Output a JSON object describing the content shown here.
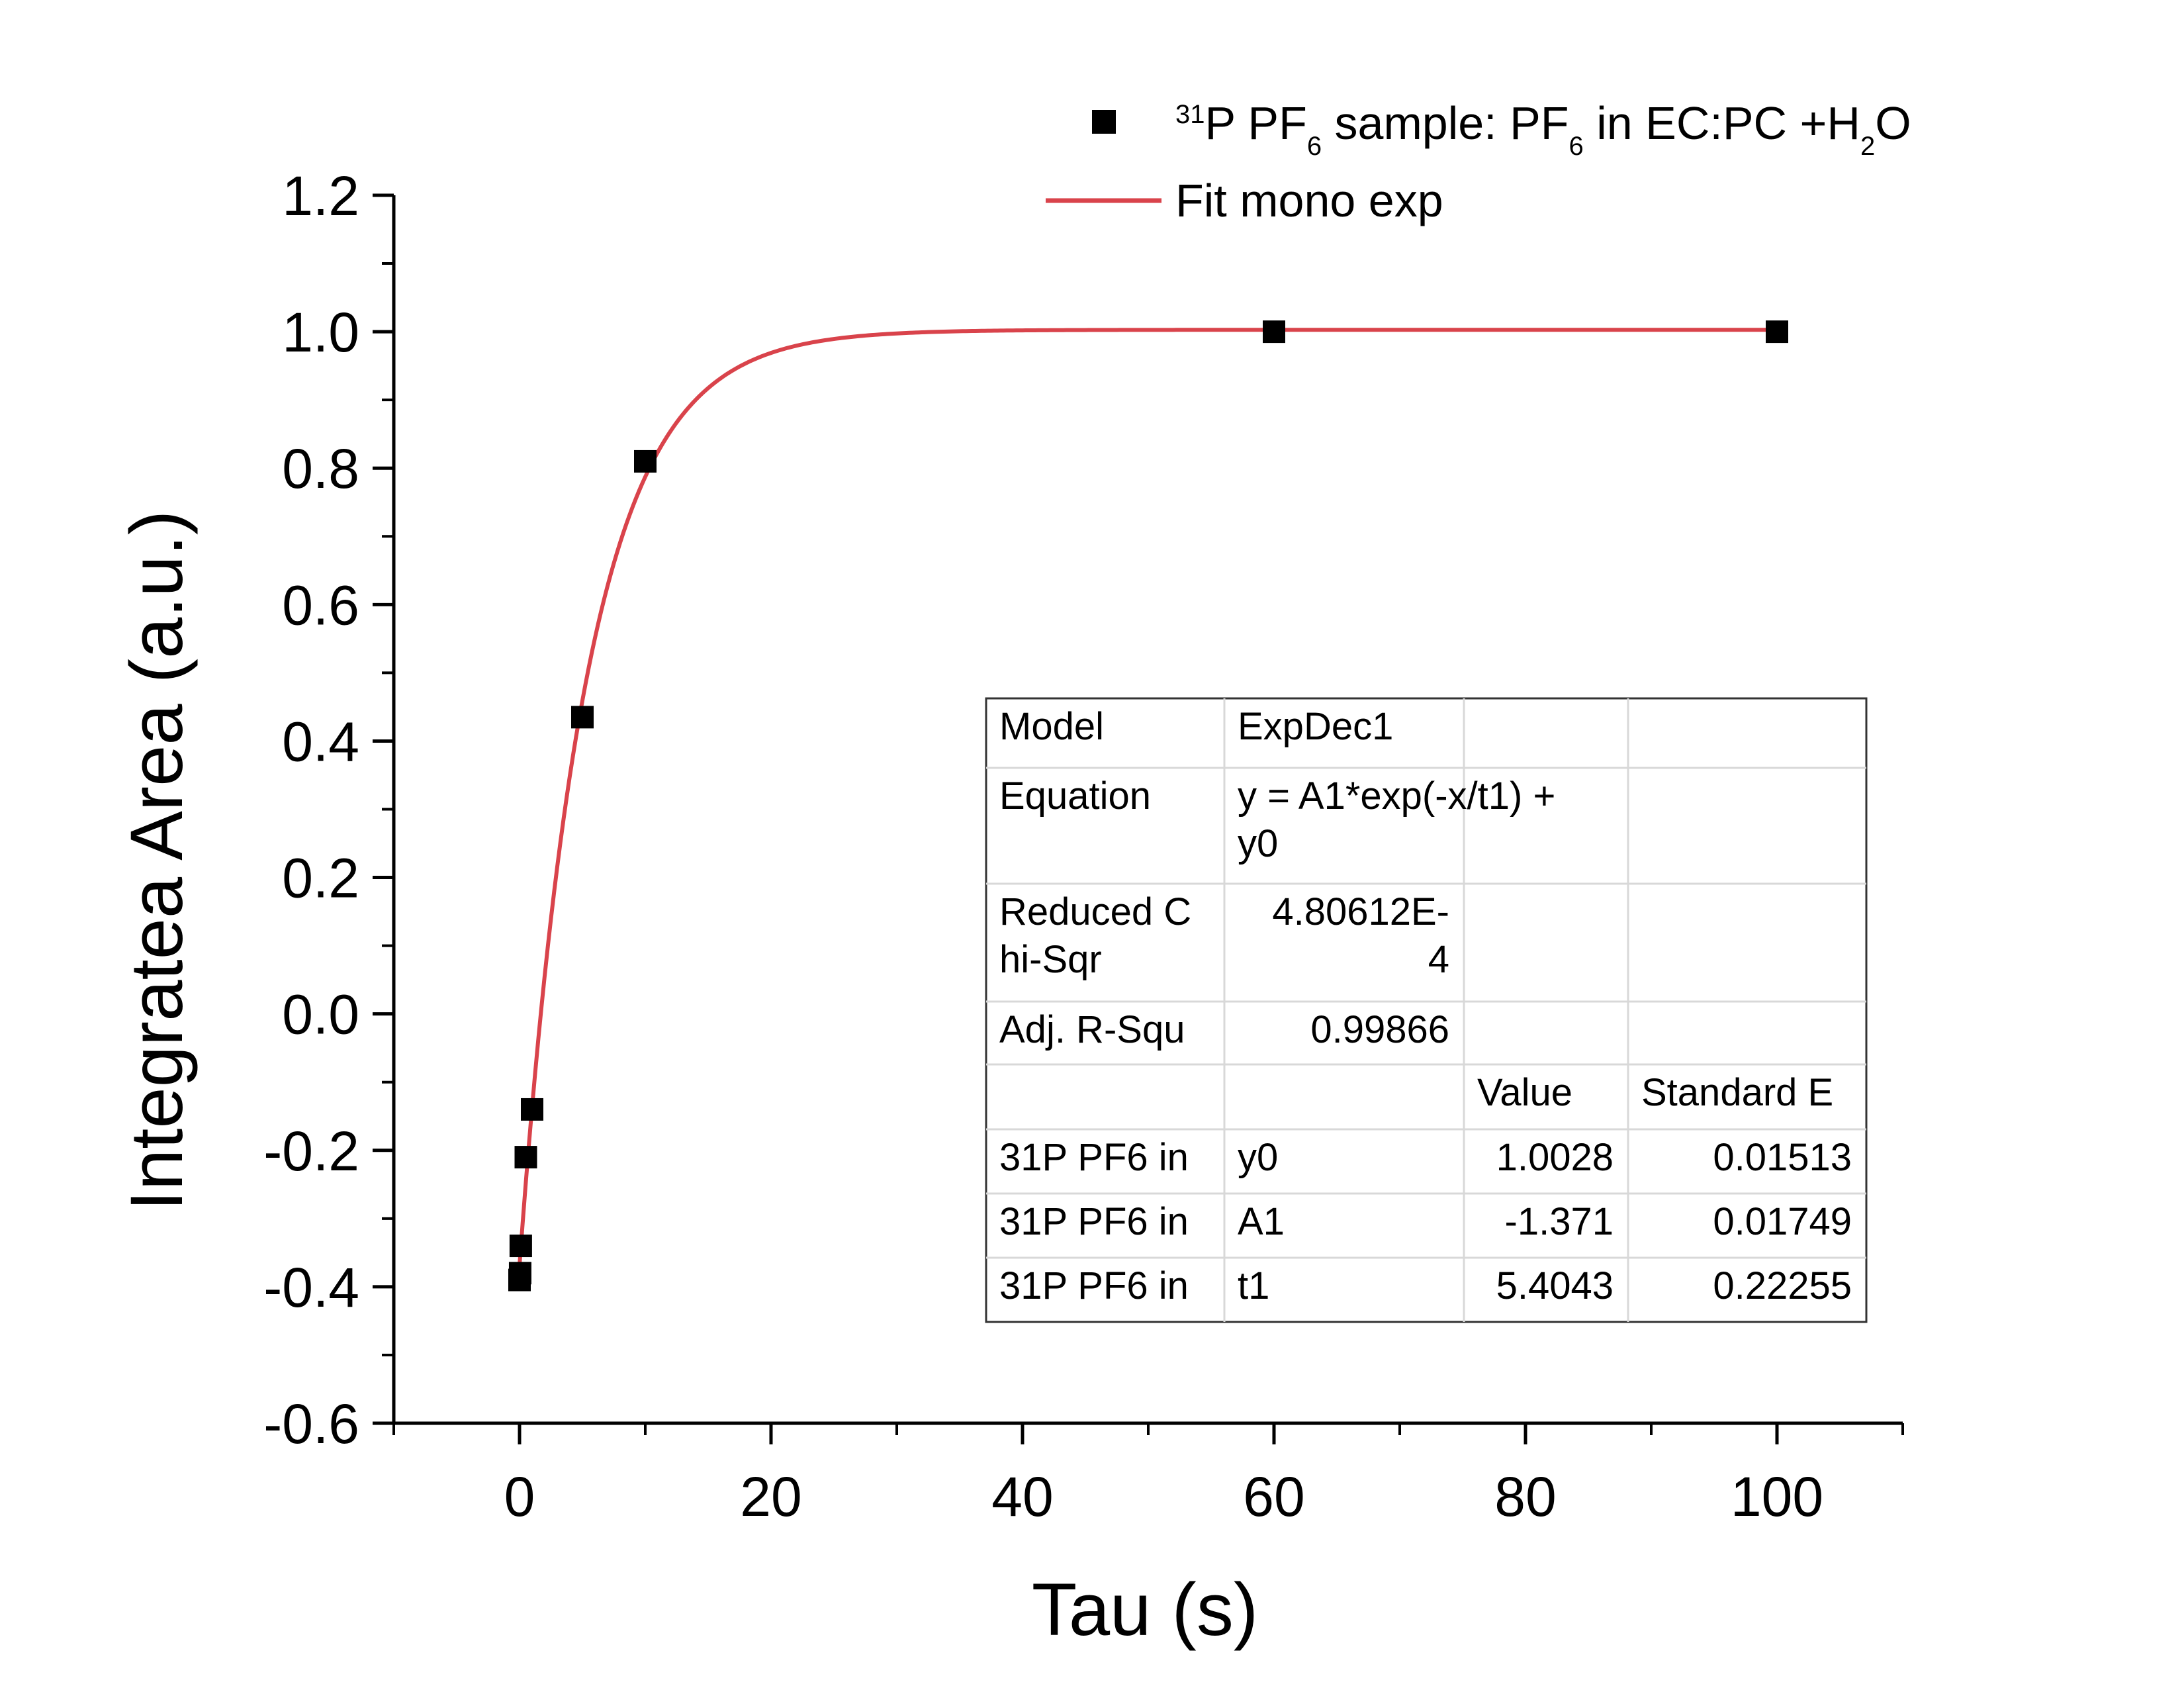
{
  "chart_data": {
    "type": "scatter",
    "xlabel": "Tau (s)",
    "ylabel": "Integratea Area (a.u.)",
    "xlim": [
      -10,
      110
    ],
    "ylim": [
      -0.6,
      1.2
    ],
    "xticks": [
      0,
      20,
      40,
      60,
      80,
      100
    ],
    "yticks": [
      -0.6,
      -0.4,
      -0.2,
      0.0,
      0.2,
      0.4,
      0.6,
      0.8,
      1.0,
      1.2
    ],
    "xtick_labels": [
      "0",
      "20",
      "40",
      "60",
      "80",
      "100"
    ],
    "ytick_labels": [
      "-0.6",
      "-0.4",
      "-0.2",
      "0.0",
      "0.2",
      "0.4",
      "0.6",
      "0.8",
      "1.0",
      "1.2"
    ],
    "grid": false,
    "legend_position": "top-right",
    "series": [
      {
        "name": "31P PF6 sample: PF6 in EC:PC +H2O",
        "kind": "scatter",
        "marker": "square",
        "color": "#000000",
        "x": [
          0,
          0.05,
          0.1,
          0.5,
          1,
          5,
          10,
          60,
          100
        ],
        "y": [
          -0.39,
          -0.38,
          -0.34,
          -0.21,
          -0.14,
          0.435,
          0.81,
          1.0,
          1.0
        ]
      },
      {
        "name": "Fit mono exp",
        "kind": "line",
        "color": "#d9434b",
        "model": "exp_decay",
        "params": {
          "y0": 1.0028,
          "A1": -1.371,
          "t1": 5.4043
        },
        "x_range": [
          0,
          100
        ]
      }
    ],
    "legend": {
      "scatter_parts": [
        {
          "t": "31",
          "style": "sup"
        },
        {
          "t": "P PF",
          "style": "normal"
        },
        {
          "t": "6",
          "style": "sub"
        },
        {
          "t": " sample: PF",
          "style": "normal"
        },
        {
          "t": "6",
          "style": "sub"
        },
        {
          "t": " in EC:PC +H",
          "style": "normal"
        },
        {
          "t": "2",
          "style": "sub"
        },
        {
          "t": "O",
          "style": "normal"
        }
      ],
      "fit_label": "Fit mono exp"
    },
    "fit_table": {
      "rows": [
        [
          "Model",
          "ExpDec1",
          "",
          ""
        ],
        [
          "Equation",
          "y = A1*exp(-x/t1) +\ny0",
          "",
          ""
        ],
        [
          "Reduced C\nhi-Sqr",
          "4.80612E-\n4",
          "",
          ""
        ],
        [
          "Adj. R-Squ",
          "0.99866",
          "",
          ""
        ],
        [
          "",
          "",
          "Value",
          "Standard E"
        ],
        [
          "31P PF6 in",
          "y0",
          "1.0028",
          "0.01513"
        ],
        [
          "31P PF6 in",
          "A1",
          "-1.371",
          "0.01749"
        ],
        [
          "31P PF6 in",
          "t1",
          "5.4043",
          "0.22255"
        ]
      ]
    }
  }
}
